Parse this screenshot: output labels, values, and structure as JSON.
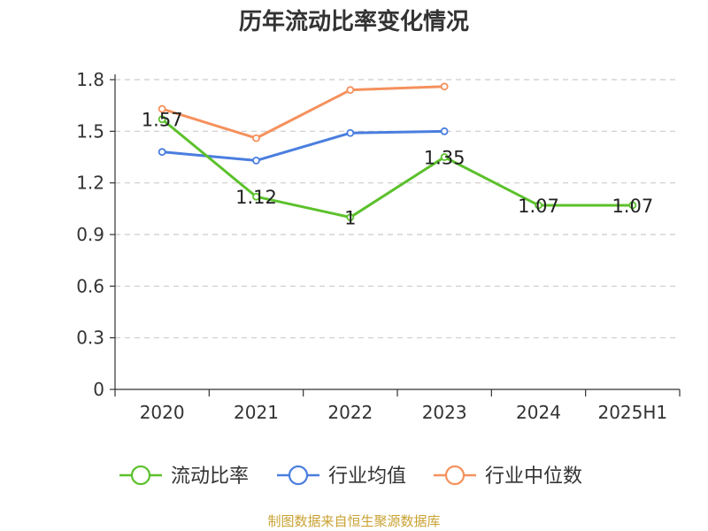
{
  "chart_data": {
    "type": "line",
    "title": "历年流动比率变化情况",
    "categories": [
      "2020",
      "2021",
      "2022",
      "2023",
      "2024",
      "2025H1"
    ],
    "ylim": [
      0,
      1.8
    ],
    "yticks": [
      "0",
      "0.3",
      "0.6",
      "0.9",
      "1.2",
      "1.5",
      "1.8"
    ],
    "grid": true,
    "legend_position": "bottom",
    "series": [
      {
        "name": "流动比率",
        "color": "#5cc12c",
        "values": [
          1.57,
          1.12,
          1.0,
          1.35,
          1.07,
          1.07
        ],
        "labels": [
          "1.57",
          "1.12",
          "1",
          "1.35",
          "1.07",
          "1.07"
        ]
      },
      {
        "name": "行业均值",
        "color": "#4a7ede",
        "values": [
          1.38,
          1.33,
          1.49,
          1.5,
          null,
          null
        ]
      },
      {
        "name": "行业中位数",
        "color": "#f5915d",
        "values": [
          1.63,
          1.46,
          1.74,
          1.76,
          null,
          null
        ]
      }
    ]
  },
  "footer": {
    "source": "制图数据来自恒生聚源数据库"
  }
}
